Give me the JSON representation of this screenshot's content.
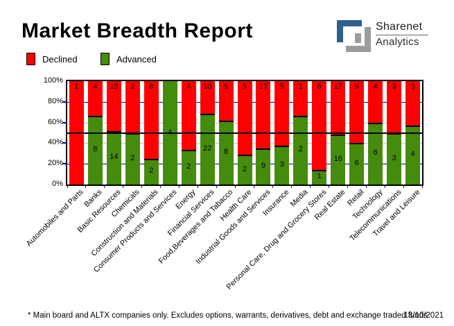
{
  "header": {
    "title": "Market Breadth Report"
  },
  "logo": {
    "name": "Sharenet",
    "sub": "Analytics",
    "glyph": "sharenet-square-s",
    "blue": "#2F5F8C",
    "gray": "#9C9C9C"
  },
  "legend": {
    "declined_label": "Declined",
    "advanced_label": "Advanced"
  },
  "footer": {
    "note": "* Main board and ALTX companies only. Excludes options, warrants, derivatives, debt and exchange traded funds",
    "date": "13/10/2021"
  },
  "colors": {
    "declined": "#FF0000",
    "advanced": "#458B0D",
    "grid_major": "#000080",
    "grid_minor": "#C0C0C0",
    "mid_line": "#000000"
  },
  "chart_data": {
    "type": "bar",
    "stacking": "percent",
    "title": "Market Breadth Report",
    "xlabel": "",
    "ylabel": "",
    "ylim": [
      0,
      100
    ],
    "yticks": [
      "100%",
      "80%",
      "60%",
      "40%",
      "20%",
      "0%"
    ],
    "ytick_values": [
      100,
      80,
      60,
      40,
      20,
      0
    ],
    "grid": "horizontal",
    "gridlines": [
      {
        "value": 80,
        "color": "#000080"
      },
      {
        "value": 60,
        "color": "#C0C0C0"
      },
      {
        "value": 50,
        "color": "#000000"
      },
      {
        "value": 40,
        "color": "#C0C0C0"
      },
      {
        "value": 20,
        "color": "#000080"
      }
    ],
    "legend_position": "top-left",
    "categories": [
      "Automobiles and Parts",
      "Banks",
      "Basic Resources",
      "Chemicals",
      "Construction and Materials",
      "Consumer Products and Services",
      "Energy",
      "Financial Services",
      "Food,Beverages and Tabacco",
      "Health Care",
      "Industrial Goods and Services",
      "Insurance",
      "Media",
      "Personal Care, Drug and Grocery Stores",
      "Real Estate",
      "Retail",
      "Technology",
      "Telecommunications",
      "Travel and Leisure"
    ],
    "series": [
      {
        "name": "Declined",
        "color": "#FF0000",
        "values": [
          1,
          4,
          13,
          2,
          6,
          0,
          4,
          10,
          5,
          5,
          17,
          5,
          1,
          6,
          17,
          9,
          4,
          3,
          3
        ]
      },
      {
        "name": "Advanced",
        "color": "#458B0D",
        "values": [
          0,
          8,
          14,
          2,
          2,
          4,
          2,
          22,
          8,
          2,
          9,
          3,
          2,
          1,
          16,
          6,
          6,
          3,
          4
        ]
      }
    ]
  }
}
